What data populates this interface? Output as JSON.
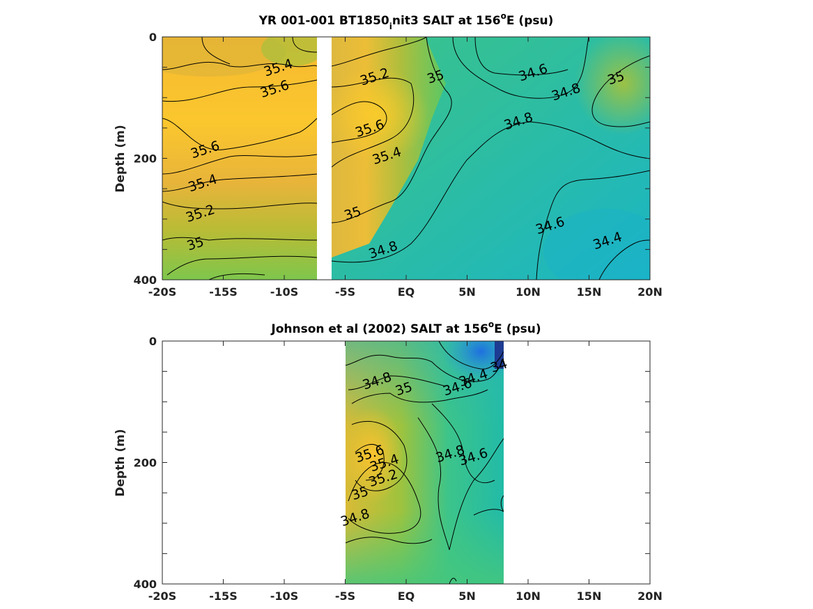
{
  "chart_data": [
    {
      "type": "contour",
      "title_main": "YR 001-001 BT1850",
      "title_sub": "i",
      "title_rest": "nit3 SALT at 156",
      "title_sup": "o",
      "title_end": "E (psu)",
      "xlabel": "",
      "ylabel": "Depth (m)",
      "xlim": [
        -20,
        20
      ],
      "ylim": [
        0,
        400
      ],
      "x_ticks": [
        -20,
        -15,
        -10,
        -5,
        0,
        5,
        10,
        15,
        20
      ],
      "x_tick_labels": [
        "-20S",
        "-15S",
        "-10S",
        "-5S",
        "EQ",
        "5N",
        "10N",
        "15N",
        "20N"
      ],
      "y_ticks": [
        0,
        200,
        400
      ],
      "y_tick_labels": [
        "0",
        "200",
        "400"
      ],
      "data_gap_x": [
        -7.4,
        -6.1
      ],
      "contour_labels": [
        {
          "text": "35.4",
          "x": -10.5,
          "y": 50
        },
        {
          "text": "35.6",
          "x": -10.8,
          "y": 85
        },
        {
          "text": "35.6",
          "x": -16.5,
          "y": 185
        },
        {
          "text": "35.4",
          "x": -16.7,
          "y": 240
        },
        {
          "text": "35.2",
          "x": -16.9,
          "y": 290
        },
        {
          "text": "35",
          "x": -17.3,
          "y": 340
        },
        {
          "text": "35.2",
          "x": -2.6,
          "y": 65
        },
        {
          "text": "35",
          "x": 2.4,
          "y": 65
        },
        {
          "text": "35.6",
          "x": -3.0,
          "y": 150
        },
        {
          "text": "35.4",
          "x": -1.6,
          "y": 195
        },
        {
          "text": "35",
          "x": -4.4,
          "y": 290
        },
        {
          "text": "34.8",
          "x": -1.9,
          "y": 350
        },
        {
          "text": "34.6",
          "x": 10.4,
          "y": 58
        },
        {
          "text": "34.8",
          "x": 13.1,
          "y": 90
        },
        {
          "text": "35",
          "x": 17.2,
          "y": 67
        },
        {
          "text": "34.8",
          "x": 9.2,
          "y": 138
        },
        {
          "text": "34.6",
          "x": 11.8,
          "y": 310
        },
        {
          "text": "34.4",
          "x": 16.5,
          "y": 335
        }
      ]
    },
    {
      "type": "contour",
      "title_main": "Johnson et al (2002) SALT at 156",
      "title_sup": "o",
      "title_end": "E (psu)",
      "xlabel": "",
      "ylabel": "Depth (m)",
      "xlim": [
        -20,
        20
      ],
      "ylim": [
        0,
        400
      ],
      "data_x_range": [
        -5,
        8
      ],
      "x_ticks": [
        -20,
        -15,
        -10,
        -5,
        0,
        5,
        10,
        15,
        20
      ],
      "x_tick_labels": [
        "-20S",
        "-15S",
        "-10S",
        "-5S",
        "EQ",
        "5N",
        "10N",
        "15N",
        "20N"
      ],
      "y_ticks": [
        0,
        200,
        400
      ],
      "y_tick_labels": [
        "0",
        "200",
        "400"
      ],
      "contour_labels": [
        {
          "text": "34",
          "x": 7.6,
          "y": 40
        },
        {
          "text": "34.4",
          "x": 5.5,
          "y": 60
        },
        {
          "text": "34.6",
          "x": 4.2,
          "y": 75
        },
        {
          "text": "34.8",
          "x": -2.4,
          "y": 65
        },
        {
          "text": "35",
          "x": -0.2,
          "y": 78
        },
        {
          "text": "34.8",
          "x": 3.6,
          "y": 185
        },
        {
          "text": "34.6",
          "x": 5.5,
          "y": 190
        },
        {
          "text": "35.6",
          "x": -3.0,
          "y": 185
        },
        {
          "text": "35.4",
          "x": -1.8,
          "y": 200
        },
        {
          "text": "35.2",
          "x": -1.9,
          "y": 225
        },
        {
          "text": "35",
          "x": -3.8,
          "y": 250
        },
        {
          "text": "34.8",
          "x": -4.2,
          "y": 290
        }
      ]
    }
  ]
}
